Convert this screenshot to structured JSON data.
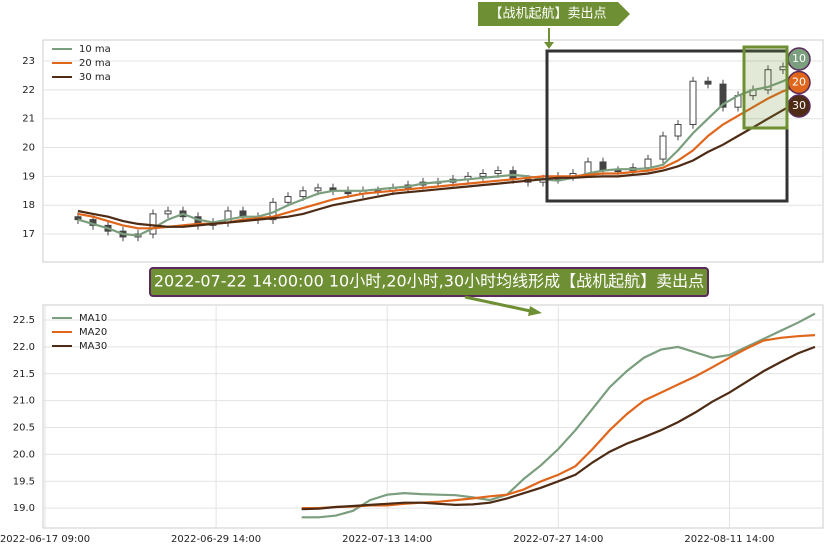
{
  "chart_data": [
    {
      "type": "candlestick",
      "annotation": "【战机起航】卖出点",
      "badges": [
        "10",
        "20",
        "30"
      ],
      "ylim": [
        16.03,
        23.73
      ],
      "yticks": [
        17,
        18,
        19,
        20,
        21,
        22,
        23
      ],
      "grid": true,
      "legend": "upper left",
      "open": [
        17.6,
        17.5,
        17.3,
        17.1,
        16.9,
        17.0,
        17.7,
        17.8,
        17.6,
        17.3,
        17.4,
        17.8,
        17.6,
        17.5,
        18.1,
        18.3,
        18.5,
        18.6,
        18.5,
        18.4,
        18.5,
        18.5,
        18.6,
        18.7,
        18.8,
        18.8,
        18.9,
        19.0,
        19.1,
        19.2,
        18.9,
        18.8,
        18.9,
        19.0,
        19.1,
        19.5,
        19.2,
        19.2,
        19.3,
        19.6,
        20.4,
        20.8,
        22.3,
        22.2,
        21.4,
        21.8,
        22.0,
        22.7,
        22.8
      ],
      "high": [
        17.75,
        17.65,
        17.45,
        17.25,
        17.15,
        17.85,
        17.95,
        17.95,
        17.75,
        17.55,
        17.95,
        17.95,
        17.75,
        18.25,
        18.45,
        18.65,
        18.75,
        18.75,
        18.65,
        18.65,
        18.65,
        18.75,
        18.85,
        18.95,
        18.95,
        19.05,
        19.15,
        19.25,
        19.35,
        19.35,
        19.05,
        19.05,
        19.15,
        19.25,
        19.65,
        19.65,
        19.35,
        19.45,
        19.75,
        20.55,
        20.95,
        22.45,
        22.45,
        22.35,
        21.95,
        22.15,
        22.85,
        22.95,
        23.05
      ],
      "low": [
        17.35,
        17.15,
        16.95,
        16.75,
        16.75,
        16.85,
        17.55,
        17.45,
        17.15,
        17.15,
        17.25,
        17.45,
        17.35,
        17.35,
        17.95,
        18.15,
        18.35,
        18.35,
        18.25,
        18.25,
        18.35,
        18.35,
        18.45,
        18.55,
        18.65,
        18.65,
        18.75,
        18.85,
        18.95,
        18.75,
        18.65,
        18.65,
        18.75,
        18.85,
        18.95,
        19.05,
        19.05,
        19.05,
        19.15,
        19.45,
        20.25,
        20.65,
        22.05,
        21.25,
        21.25,
        21.65,
        21.85,
        22.55,
        22.65
      ],
      "close": [
        17.5,
        17.3,
        17.1,
        16.9,
        17.0,
        17.7,
        17.8,
        17.6,
        17.3,
        17.4,
        17.8,
        17.6,
        17.5,
        18.1,
        18.3,
        18.5,
        18.6,
        18.5,
        18.4,
        18.5,
        18.5,
        18.6,
        18.7,
        18.8,
        18.8,
        18.9,
        19.0,
        19.1,
        19.2,
        18.9,
        18.8,
        18.9,
        19.0,
        19.1,
        19.5,
        19.2,
        19.2,
        19.3,
        19.6,
        20.4,
        20.8,
        22.3,
        22.2,
        21.4,
        21.8,
        22.0,
        22.7,
        22.8,
        22.9
      ],
      "series": [
        {
          "name": "10 ma",
          "color": "#7a9e7e",
          "values": [
            17.5,
            17.35,
            17.2,
            17.0,
            16.95,
            17.2,
            17.5,
            17.7,
            17.5,
            17.4,
            17.5,
            17.6,
            17.6,
            17.75,
            18.0,
            18.2,
            18.4,
            18.5,
            18.5,
            18.5,
            18.55,
            18.6,
            18.65,
            18.75,
            18.8,
            18.85,
            18.9,
            18.95,
            19.0,
            19.05,
            19.0,
            18.9,
            18.85,
            18.95,
            19.1,
            19.2,
            19.25,
            19.25,
            19.28,
            19.4,
            19.9,
            20.5,
            21.0,
            21.5,
            21.8,
            22.0,
            22.1,
            22.3,
            22.55
          ]
        },
        {
          "name": "20 ma",
          "color": "#e0661c",
          "values": [
            17.7,
            17.6,
            17.45,
            17.3,
            17.2,
            17.2,
            17.25,
            17.3,
            17.35,
            17.35,
            17.4,
            17.5,
            17.55,
            17.6,
            17.75,
            17.9,
            18.05,
            18.2,
            18.3,
            18.4,
            18.45,
            18.5,
            18.55,
            18.6,
            18.65,
            18.7,
            18.75,
            18.8,
            18.85,
            18.9,
            18.95,
            19.0,
            19.0,
            19.0,
            19.05,
            19.1,
            19.1,
            19.15,
            19.2,
            19.3,
            19.55,
            19.9,
            20.4,
            20.8,
            21.1,
            21.4,
            21.7,
            21.95,
            22.15
          ]
        },
        {
          "name": "30 ma",
          "color": "#4e2b14",
          "values": [
            17.8,
            17.7,
            17.6,
            17.45,
            17.35,
            17.3,
            17.25,
            17.25,
            17.3,
            17.35,
            17.4,
            17.45,
            17.5,
            17.55,
            17.6,
            17.7,
            17.85,
            18.0,
            18.1,
            18.2,
            18.3,
            18.4,
            18.45,
            18.5,
            18.55,
            18.6,
            18.65,
            18.7,
            18.75,
            18.8,
            18.85,
            18.9,
            18.95,
            18.95,
            18.98,
            19.0,
            19.0,
            19.05,
            19.1,
            19.2,
            19.35,
            19.55,
            19.85,
            20.1,
            20.4,
            20.7,
            21.0,
            21.3,
            21.6
          ]
        }
      ]
    },
    {
      "type": "line",
      "annotation": "2022-07-22 14:00:00 10小时,20小时,30小时均线形成【战机起航】卖出点",
      "ylim": [
        18.63,
        22.78
      ],
      "yticks": [
        {
          "value": 19,
          "label": "19.0"
        },
        19.5,
        {
          "value": 20,
          "label": "20.0"
        },
        20.5,
        {
          "value": 21,
          "label": "21.0"
        },
        21.5,
        {
          "value": 22,
          "label": "22.0"
        },
        22.5
      ],
      "grid": true,
      "legend": "upper left",
      "categories": [
        "2022-06-17 09:00",
        null,
        null,
        null,
        null,
        null,
        null,
        null,
        null,
        null,
        "2022-06-29 14:00",
        null,
        null,
        null,
        null,
        null,
        null,
        null,
        null,
        null,
        "2022-07-13 14:00",
        null,
        null,
        null,
        null,
        null,
        null,
        null,
        null,
        null,
        "2022-07-27 14:00",
        null,
        null,
        null,
        null,
        null,
        null,
        null,
        null,
        null,
        "2022-08-11 14:00",
        null,
        null,
        null,
        null,
        null
      ],
      "series": [
        {
          "name": "MA10",
          "color": "#7a9e7e",
          "values": [
            null,
            null,
            null,
            null,
            null,
            null,
            null,
            null,
            null,
            null,
            null,
            null,
            null,
            null,
            null,
            18.83,
            18.83,
            18.86,
            18.95,
            19.15,
            19.25,
            19.28,
            19.26,
            19.25,
            19.24,
            19.2,
            19.15,
            19.25,
            19.55,
            19.8,
            20.1,
            20.45,
            20.85,
            21.25,
            21.55,
            21.8,
            21.95,
            22.0,
            21.9,
            21.8,
            21.85,
            22.0,
            22.15,
            22.3,
            22.45,
            22.62
          ]
        },
        {
          "name": "MA20",
          "color": "#e0661c",
          "values": [
            null,
            null,
            null,
            null,
            null,
            null,
            null,
            null,
            null,
            null,
            null,
            null,
            null,
            null,
            null,
            19.0,
            19.0,
            19.02,
            19.03,
            19.05,
            19.05,
            19.08,
            19.1,
            19.12,
            19.15,
            19.18,
            19.22,
            19.25,
            19.35,
            19.5,
            19.62,
            19.78,
            20.1,
            20.45,
            20.75,
            21.0,
            21.15,
            21.3,
            21.45,
            21.62,
            21.8,
            21.97,
            22.12,
            22.17,
            22.2,
            22.22
          ]
        },
        {
          "name": "MA30",
          "color": "#4e2b14",
          "values": [
            null,
            null,
            null,
            null,
            null,
            null,
            null,
            null,
            null,
            null,
            null,
            null,
            null,
            null,
            null,
            18.98,
            18.99,
            19.02,
            19.04,
            19.06,
            19.08,
            19.1,
            19.1,
            19.08,
            19.06,
            19.07,
            19.1,
            19.18,
            19.28,
            19.38,
            19.5,
            19.62,
            19.85,
            20.05,
            20.2,
            20.32,
            20.45,
            20.6,
            20.78,
            20.98,
            21.15,
            21.35,
            21.55,
            21.72,
            21.88,
            22.0
          ]
        }
      ]
    }
  ]
}
